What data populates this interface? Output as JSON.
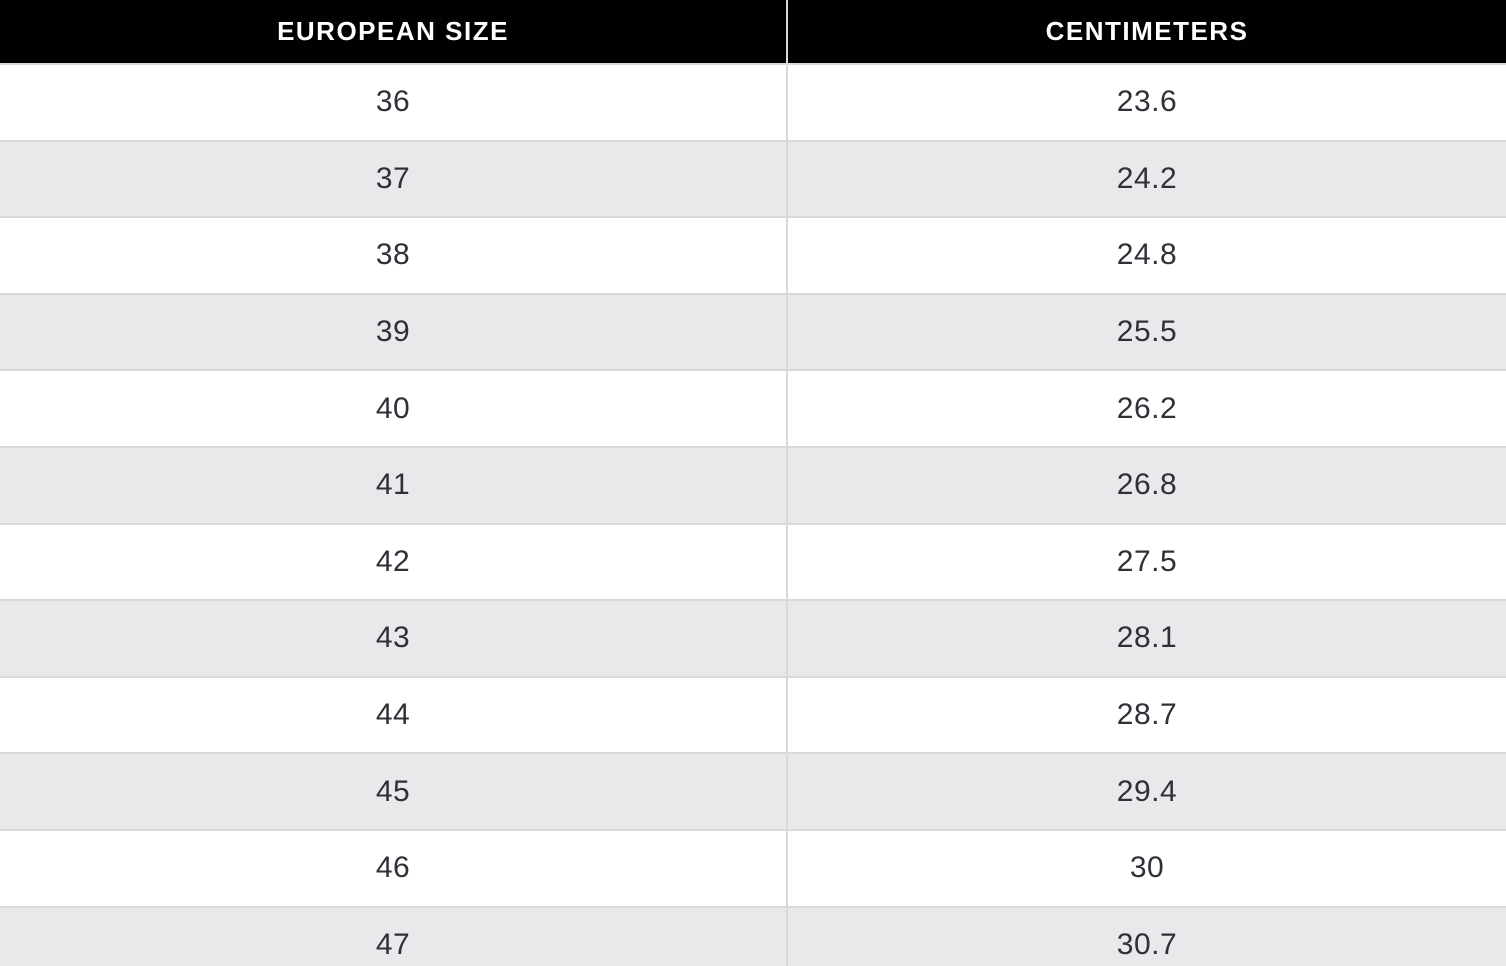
{
  "colors": {
    "header_bg": "#010101",
    "header_text": "#ffffff",
    "stripe_bg": "#e9e9ec",
    "row_bg": "#ffffff",
    "divider": "#d9d9dc",
    "data_text": "#2e3138"
  },
  "chart_data": {
    "type": "table",
    "title": "",
    "columns": [
      "EUROPEAN SIZE",
      "CENTIMETERS"
    ],
    "rows": [
      [
        "36",
        "23.6"
      ],
      [
        "37",
        "24.2"
      ],
      [
        "38",
        "24.8"
      ],
      [
        "39",
        "25.5"
      ],
      [
        "40",
        "26.2"
      ],
      [
        "41",
        "26.8"
      ],
      [
        "42",
        "27.5"
      ],
      [
        "43",
        "28.1"
      ],
      [
        "44",
        "28.7"
      ],
      [
        "45",
        "29.4"
      ],
      [
        "46",
        "30"
      ],
      [
        "47",
        "30.7"
      ]
    ],
    "layout": {
      "header_style": "black-bar-white-text",
      "zebra_striping": true,
      "last_row_clipped_at_bottom": true
    }
  }
}
